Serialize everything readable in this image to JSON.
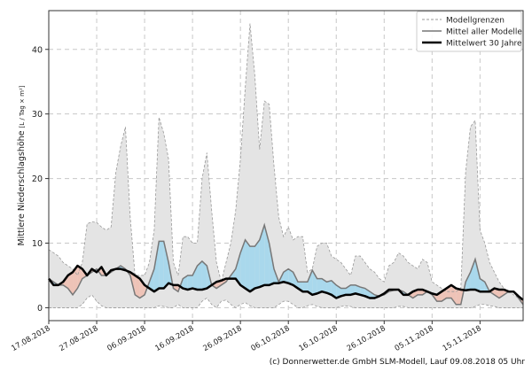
{
  "chart_data": {
    "type": "area",
    "title": "",
    "xlabel": "",
    "ylabel": "Mittlere Niederschlagshöhe",
    "ylabel_unit": "[L / Tag × m²]",
    "ylim": [
      -2,
      46
    ],
    "xlim": [
      "17.08.2018",
      "24.11.2018"
    ],
    "yticks": [
      0,
      10,
      20,
      30,
      40
    ],
    "xticks": [
      "17.08.2018",
      "27.08.2018",
      "06.09.2018",
      "16.09.2018",
      "26.09.2018",
      "06.10.2018",
      "16.10.2018",
      "26.10.2018",
      "05.11.2018",
      "15.11.2018"
    ],
    "grid": true,
    "legend_placement": "top-right",
    "legend": [
      "Modellgrenzen",
      "Mittel aller Modelle",
      "Mittelwert 30 Jahre"
    ],
    "colors": {
      "envelope": "#e4e4e4",
      "envelope_line": "#999999",
      "above": "#a9d8ec",
      "below": "#eec3b7",
      "model_mean": "#777777",
      "climate": "#000000"
    },
    "x": [
      "17.08.2018",
      "18.08.2018",
      "19.08.2018",
      "20.08.2018",
      "21.08.2018",
      "22.08.2018",
      "23.08.2018",
      "24.08.2018",
      "25.08.2018",
      "26.08.2018",
      "27.08.2018",
      "28.08.2018",
      "29.08.2018",
      "30.08.2018",
      "31.08.2018",
      "01.09.2018",
      "02.09.2018",
      "03.09.2018",
      "04.09.2018",
      "05.09.2018",
      "06.09.2018",
      "07.09.2018",
      "08.09.2018",
      "09.09.2018",
      "10.09.2018",
      "11.09.2018",
      "12.09.2018",
      "13.09.2018",
      "14.09.2018",
      "15.09.2018",
      "16.09.2018",
      "17.09.2018",
      "18.09.2018",
      "19.09.2018",
      "20.09.2018",
      "21.09.2018",
      "22.09.2018",
      "23.09.2018",
      "24.09.2018",
      "25.09.2018",
      "26.09.2018",
      "27.09.2018",
      "28.09.2018",
      "29.09.2018",
      "30.09.2018",
      "01.10.2018",
      "02.10.2018",
      "03.10.2018",
      "04.10.2018",
      "05.10.2018",
      "06.10.2018",
      "07.10.2018",
      "08.10.2018",
      "09.10.2018",
      "10.10.2018",
      "11.10.2018",
      "12.10.2018",
      "13.10.2018",
      "14.10.2018",
      "15.10.2018",
      "16.10.2018",
      "17.10.2018",
      "18.10.2018",
      "19.10.2018",
      "20.10.2018",
      "21.10.2018",
      "22.10.2018",
      "23.10.2018",
      "24.10.2018",
      "25.10.2018",
      "26.10.2018",
      "27.10.2018",
      "28.10.2018",
      "29.10.2018",
      "30.10.2018",
      "31.10.2018",
      "01.11.2018",
      "02.11.2018",
      "03.11.2018",
      "04.11.2018",
      "05.11.2018",
      "06.11.2018",
      "07.11.2018",
      "08.11.2018",
      "09.11.2018",
      "10.11.2018",
      "11.11.2018",
      "12.11.2018",
      "13.11.2018",
      "14.11.2018",
      "15.11.2018",
      "16.11.2018",
      "17.11.2018",
      "18.11.2018",
      "19.11.2018",
      "20.11.2018",
      "21.11.2018",
      "22.11.2018",
      "23.11.2018",
      "24.11.2018"
    ],
    "series": [
      {
        "values": [
          9,
          8.5,
          8,
          7,
          6.5,
          6,
          5,
          7,
          13,
          13.3,
          13.2,
          12.5,
          12,
          12.5,
          21,
          25,
          28,
          14,
          5,
          5,
          5,
          7,
          12,
          29.5,
          27,
          23,
          7,
          5,
          11,
          11,
          10,
          10,
          20,
          24,
          15,
          7,
          4,
          7,
          10,
          15,
          23,
          34,
          44,
          36,
          24.5,
          32,
          31.5,
          22,
          14,
          11,
          12.5,
          10.5,
          11,
          11,
          5.5,
          6,
          9.5,
          10,
          10,
          8,
          7.5,
          7,
          6,
          5,
          8,
          8,
          7,
          6,
          5.5,
          4.5,
          4,
          6.5,
          7,
          8.5,
          8,
          7,
          6.5,
          6,
          7.5,
          7,
          4,
          3.5,
          3,
          2.5,
          2.5,
          2.5,
          3,
          21,
          28,
          29,
          12,
          10,
          7,
          5.5,
          4,
          3,
          2.5,
          2,
          1.5,
          1
        ]
      },
      {
        "values": [
          0,
          0,
          0,
          0,
          0,
          0,
          0,
          0.5,
          1.5,
          2,
          1,
          0.3,
          0,
          0,
          0,
          0,
          0,
          0,
          0,
          0,
          0,
          0,
          0,
          0.3,
          0.2,
          0,
          0,
          0.5,
          0,
          0,
          0,
          0,
          1,
          1.5,
          0.5,
          0,
          1,
          1.2,
          0.5,
          0,
          0.5,
          0.8,
          0.3,
          0,
          0,
          0,
          0,
          0,
          0.5,
          1,
          1,
          0.5,
          0,
          0,
          0.3,
          0.5,
          0.2,
          0,
          0,
          0,
          0,
          0.2,
          0.3,
          0.2,
          0,
          0,
          0,
          0,
          0,
          0,
          0,
          0,
          0,
          0.2,
          0.2,
          0,
          0,
          0,
          0,
          0,
          0,
          0,
          0,
          0,
          0,
          0,
          0,
          0,
          0,
          0.2,
          0.5,
          0.5,
          0.3,
          0.2,
          0,
          0,
          0,
          0,
          0,
          0
        ]
      },
      {
        "name": "Mittel aller Modelle",
        "values": [
          4.5,
          4,
          3.5,
          3.5,
          3,
          2,
          3,
          4.5,
          5,
          5.5,
          6,
          5,
          5,
          5.5,
          6,
          6.5,
          6,
          5,
          2,
          1.5,
          2,
          4,
          6,
          10.3,
          10.3,
          7,
          3,
          2.5,
          4.5,
          5,
          5,
          6.5,
          7.2,
          6.5,
          3.5,
          3,
          3.5,
          4,
          5,
          6,
          8.5,
          10.5,
          9.5,
          9.5,
          10.5,
          12.8,
          10,
          6,
          4,
          5.5,
          6,
          5.5,
          4,
          4,
          4,
          5.8,
          4.5,
          4.5,
          4,
          4.2,
          3.5,
          3,
          3,
          3.5,
          3.5,
          3.2,
          3,
          2.5,
          2,
          1.8,
          2,
          2.5,
          2.7,
          2.8,
          2.5,
          2,
          1.5,
          2,
          2,
          2.5,
          2,
          1,
          1,
          1.5,
          1.5,
          0.5,
          0.5,
          4,
          5.5,
          7.5,
          4.5,
          4,
          2.5,
          2,
          1.5,
          2,
          2.5,
          2.5,
          1.5,
          0.5
        ]
      },
      {
        "name": "Mittelwert 30 Jahre",
        "values": [
          4.5,
          3.5,
          3.5,
          4,
          5,
          5.5,
          6.5,
          6,
          5,
          6,
          5.5,
          6.3,
          5,
          5.8,
          6,
          6,
          5.8,
          5.5,
          5,
          4.5,
          3.5,
          3,
          2.5,
          3,
          3,
          3.8,
          3.5,
          3.5,
          3,
          2.8,
          3,
          2.8,
          2.8,
          3,
          3.5,
          4,
          4.2,
          4.5,
          4.5,
          4.5,
          3.5,
          3,
          2.5,
          3,
          3.2,
          3.5,
          3.5,
          3.8,
          3.8,
          4,
          3.8,
          3.5,
          3,
          2.5,
          2.5,
          2,
          2.2,
          2.5,
          2.3,
          2,
          1.5,
          1.8,
          2,
          2,
          2.2,
          2,
          1.8,
          1.5,
          1.5,
          1.8,
          2.2,
          2.8,
          2.8,
          2.8,
          2,
          2,
          2.5,
          2.8,
          2.8,
          2.5,
          2.2,
          2,
          2.5,
          3,
          3.5,
          3,
          2.8,
          2.7,
          2.8,
          2.8,
          2.5,
          2.5,
          2.5,
          3,
          2.8,
          2.8,
          2.5,
          2.5,
          1.8,
          1.2
        ]
      }
    ]
  },
  "footer": {
    "credit": "(c) Donnerwetter.de GmbH SLM-Modell, Lauf 09.08.2018 05 Uhr"
  }
}
